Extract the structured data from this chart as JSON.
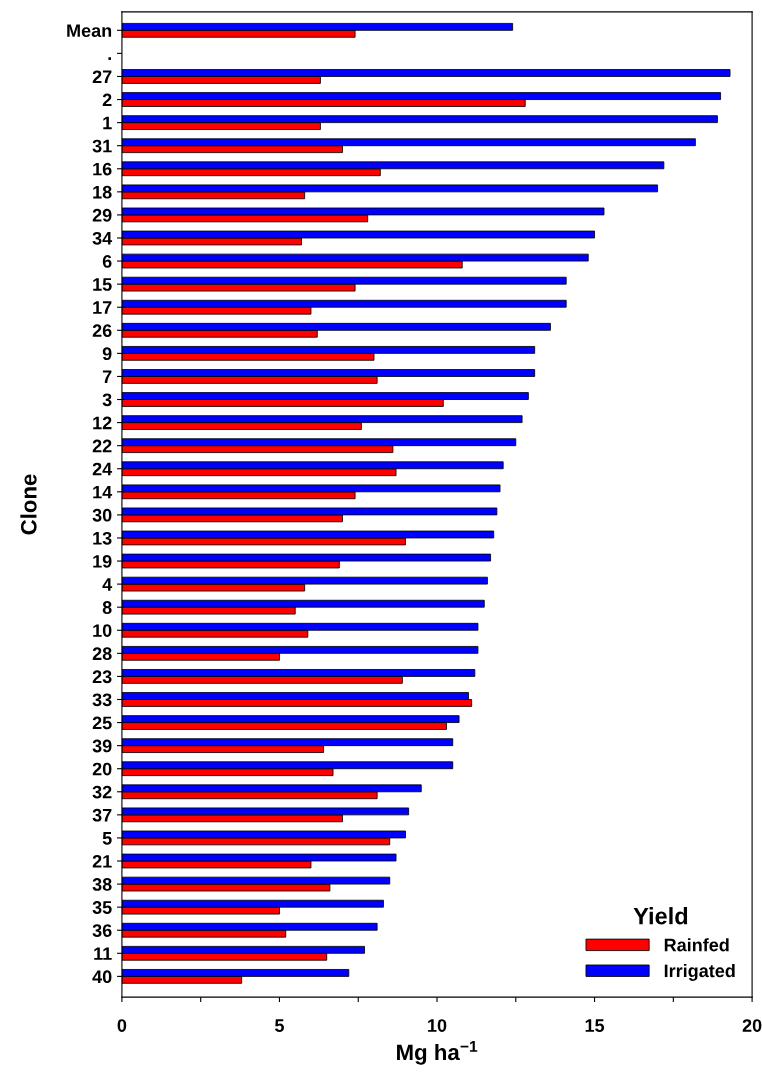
{
  "chart_data": {
    "type": "bar",
    "orientation": "horizontal",
    "xlabel": "Mg ha$^{−1}$",
    "ylabel": "Clone",
    "legend_title": "Yield",
    "legend": "bottom right",
    "categories": [
      "Mean",
      ".",
      "27",
      "2",
      "1",
      "31",
      "16",
      "18",
      "29",
      "34",
      "6",
      "15",
      "17",
      "26",
      "9",
      "7",
      "3",
      "12",
      "22",
      "24",
      "14",
      "30",
      "13",
      "19",
      "4",
      "8",
      "10",
      "28",
      "23",
      "33",
      "25",
      "39",
      "20",
      "32",
      "37",
      "5",
      "21",
      "38",
      "35",
      "36",
      "11",
      "40"
    ],
    "series": [
      {
        "name": "Rainfed",
        "color": "#ff0000",
        "values": [
          7.4,
          null,
          6.3,
          12.8,
          6.3,
          7.0,
          8.2,
          5.8,
          7.8,
          5.7,
          10.8,
          7.4,
          6.0,
          6.2,
          8.0,
          8.1,
          10.2,
          7.6,
          8.6,
          8.7,
          7.4,
          7.0,
          9.0,
          6.9,
          5.8,
          5.5,
          5.9,
          5.0,
          8.9,
          11.1,
          10.3,
          6.4,
          6.7,
          8.1,
          7.0,
          8.5,
          6.0,
          6.6,
          5.0,
          5.2,
          6.5,
          3.8
        ]
      },
      {
        "name": "Irrigated",
        "color": "#0000ff",
        "values": [
          12.4,
          null,
          19.3,
          19.0,
          18.9,
          18.2,
          17.2,
          17.0,
          15.3,
          15.0,
          14.8,
          14.1,
          14.1,
          13.6,
          13.1,
          13.1,
          12.9,
          12.7,
          12.5,
          12.1,
          12.0,
          11.9,
          11.8,
          11.7,
          11.6,
          11.5,
          11.3,
          11.3,
          11.2,
          11.0,
          10.7,
          10.5,
          10.5,
          9.5,
          9.1,
          9.0,
          8.7,
          8.5,
          8.3,
          8.1,
          7.7,
          7.2
        ]
      }
    ],
    "xlim": [
      0,
      20
    ],
    "xticks": [
      0,
      {
        "value": 2.5,
        "label": null
      },
      5,
      {
        "value": 7.5,
        "label": null
      },
      10,
      {
        "value": 12.5,
        "label": null
      },
      15,
      {
        "value": 17.5,
        "label": null
      },
      20
    ],
    "grid": false
  }
}
